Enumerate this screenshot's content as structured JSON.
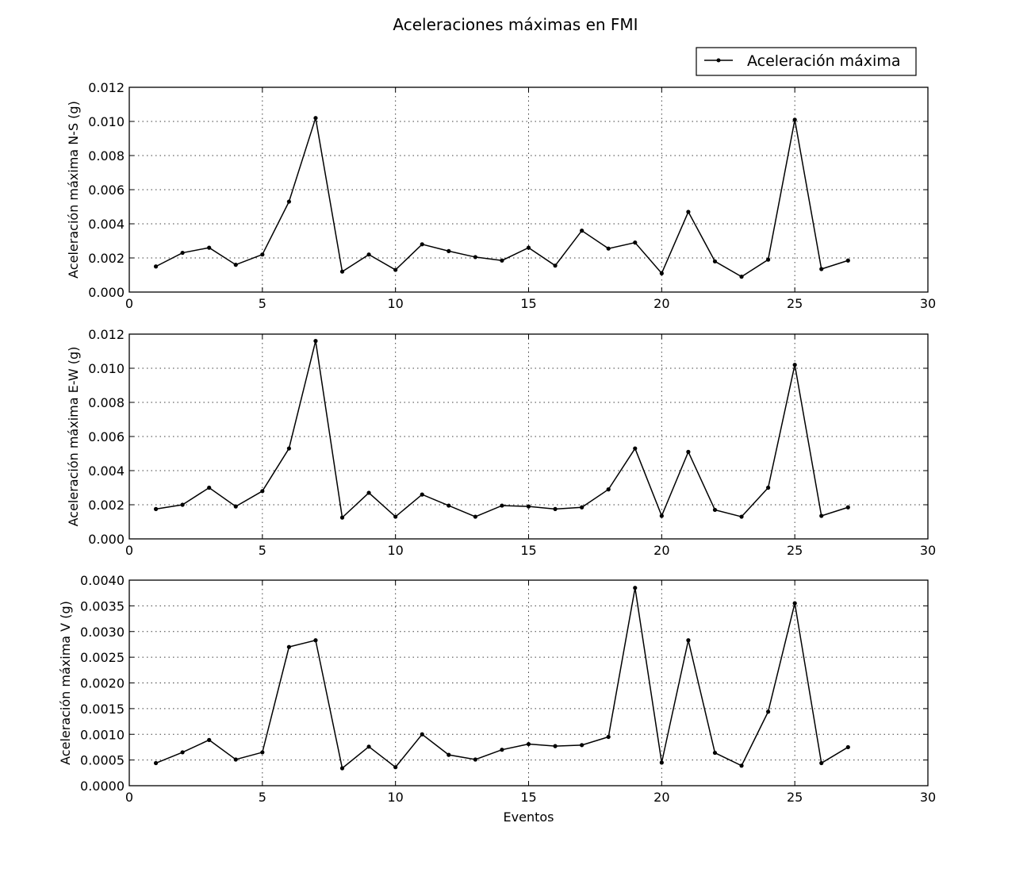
{
  "title": "Aceleraciones máximas en FMI",
  "legend": {
    "label": "Aceleración máxima",
    "placement": "top-right"
  },
  "chart_data": [
    {
      "type": "line",
      "ylabel": "Aceleración máxima N-S (g)",
      "xlabel": "",
      "xlim": [
        0,
        30
      ],
      "ylim": [
        0,
        0.012
      ],
      "xticks": [
        "0",
        "5",
        "10",
        "15",
        "20",
        "25",
        "30"
      ],
      "yticks": [
        "0.000",
        "0.002",
        "0.004",
        "0.006",
        "0.008",
        "0.010",
        "0.012"
      ],
      "grid": true,
      "series": [
        {
          "name": "Aceleración máxima",
          "x": [
            1,
            2,
            3,
            4,
            5,
            6,
            7,
            8,
            9,
            10,
            11,
            12,
            13,
            14,
            15,
            16,
            17,
            18,
            19,
            20,
            21,
            22,
            23,
            24,
            25,
            26,
            27
          ],
          "y": [
            0.0015,
            0.0023,
            0.0026,
            0.0016,
            0.0022,
            0.0053,
            0.0102,
            0.0012,
            0.0022,
            0.0013,
            0.0028,
            0.0024,
            0.00205,
            0.00185,
            0.0026,
            0.00155,
            0.0036,
            0.00255,
            0.0029,
            0.0011,
            0.0047,
            0.0018,
            0.0009,
            0.0019,
            0.0101,
            0.00135,
            0.00185
          ]
        }
      ]
    },
    {
      "type": "line",
      "ylabel": "Aceleración máxima E-W (g)",
      "xlabel": "",
      "xlim": [
        0,
        30
      ],
      "ylim": [
        0,
        0.012
      ],
      "xticks": [
        "0",
        "5",
        "10",
        "15",
        "20",
        "25",
        "30"
      ],
      "yticks": [
        "0.000",
        "0.002",
        "0.004",
        "0.006",
        "0.008",
        "0.010",
        "0.012"
      ],
      "grid": true,
      "series": [
        {
          "name": "Aceleración máxima",
          "x": [
            1,
            2,
            3,
            4,
            5,
            6,
            7,
            8,
            9,
            10,
            11,
            12,
            13,
            14,
            15,
            16,
            17,
            18,
            19,
            20,
            21,
            22,
            23,
            24,
            25,
            26,
            27
          ],
          "y": [
            0.00175,
            0.002,
            0.003,
            0.0019,
            0.0028,
            0.0053,
            0.0116,
            0.00125,
            0.0027,
            0.0013,
            0.0026,
            0.00195,
            0.0013,
            0.00195,
            0.0019,
            0.00175,
            0.00185,
            0.0029,
            0.0053,
            0.00135,
            0.0051,
            0.0017,
            0.0013,
            0.003,
            0.0102,
            0.00135,
            0.00185
          ]
        }
      ]
    },
    {
      "type": "line",
      "ylabel": "Aceleración máxima V (g)",
      "xlabel": "Eventos",
      "xlim": [
        0,
        30
      ],
      "ylim": [
        0,
        0.004
      ],
      "xticks": [
        "0",
        "5",
        "10",
        "15",
        "20",
        "25",
        "30"
      ],
      "yticks": [
        "0.0000",
        "0.0005",
        "0.0010",
        "0.0015",
        "0.0020",
        "0.0025",
        "0.0030",
        "0.0035",
        "0.0040"
      ],
      "grid": true,
      "series": [
        {
          "name": "Aceleración máxima",
          "x": [
            1,
            2,
            3,
            4,
            5,
            6,
            7,
            8,
            9,
            10,
            11,
            12,
            13,
            14,
            15,
            16,
            17,
            18,
            19,
            20,
            21,
            22,
            23,
            24,
            25,
            26,
            27
          ],
          "y": [
            0.00044,
            0.00065,
            0.00089,
            0.00051,
            0.00065,
            0.0027,
            0.00283,
            0.00034,
            0.00076,
            0.00036,
            0.001,
            0.0006,
            0.00051,
            0.0007,
            0.00081,
            0.00077,
            0.00079,
            0.00095,
            0.00385,
            0.00045,
            0.00283,
            0.00064,
            0.00039,
            0.00144,
            0.00355,
            0.00044,
            0.00075
          ]
        }
      ]
    }
  ]
}
